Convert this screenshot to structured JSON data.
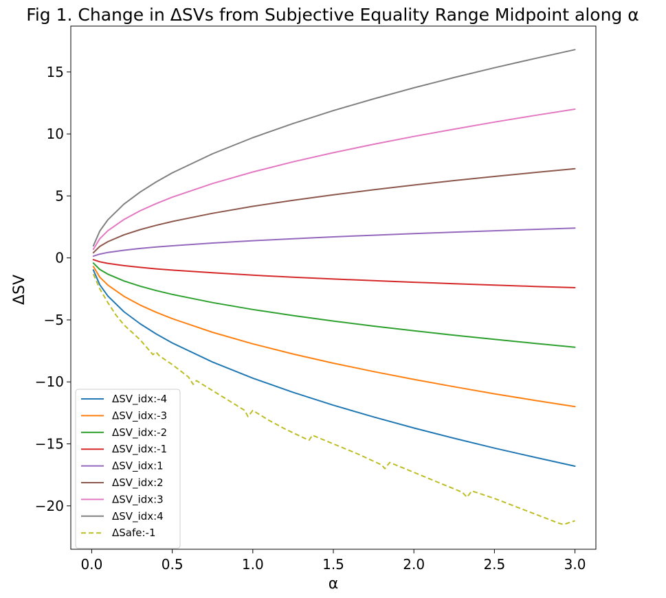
{
  "chart_data": {
    "type": "line",
    "title": "Fig 1. Change in ΔSVs from Subjective Equality Range Midpoint along α",
    "xlabel": "α",
    "ylabel": "ΔSV",
    "xlim": [
      -0.13,
      3.13
    ],
    "ylim": [
      -23.5,
      18.7
    ],
    "xticks": [
      0.0,
      0.5,
      1.0,
      1.5,
      2.0,
      2.5,
      3.0
    ],
    "xtick_labels": [
      "0.0",
      "0.5",
      "1.0",
      "1.5",
      "2.0",
      "2.5",
      "3.0"
    ],
    "yticks": [
      15,
      10,
      5,
      0,
      -5,
      -10,
      -15,
      -20
    ],
    "ytick_labels": [
      "15",
      "10",
      "5",
      "0",
      "−5",
      "−10",
      "−15",
      "−20"
    ],
    "grid": false,
    "legend_position": "lower-left",
    "x": [
      0.01,
      0.05,
      0.1,
      0.2,
      0.3,
      0.4,
      0.5,
      0.75,
      1.0,
      1.25,
      1.5,
      1.75,
      2.0,
      2.25,
      2.5,
      2.75,
      3.0
    ],
    "series": [
      {
        "name": "ΔSV_idx:-4",
        "color": "#1f77b4",
        "dash": false,
        "values": [
          -0.97,
          -2.17,
          -3.07,
          -4.34,
          -5.31,
          -6.13,
          -6.86,
          -8.4,
          -9.7,
          -10.84,
          -11.88,
          -12.83,
          -13.72,
          -14.55,
          -15.34,
          -16.08,
          -16.8
        ]
      },
      {
        "name": "ΔSV_idx:-3",
        "color": "#ff7f0e",
        "dash": false,
        "values": [
          -0.69,
          -1.55,
          -2.19,
          -3.1,
          -3.8,
          -4.38,
          -4.9,
          -6.0,
          -6.93,
          -7.75,
          -8.49,
          -9.17,
          -9.8,
          -10.39,
          -10.96,
          -11.49,
          -12.0
        ]
      },
      {
        "name": "ΔSV_idx:-2",
        "color": "#2ca02c",
        "dash": false,
        "values": [
          -0.42,
          -0.93,
          -1.31,
          -1.86,
          -2.28,
          -2.63,
          -2.94,
          -3.6,
          -4.16,
          -4.65,
          -5.09,
          -5.5,
          -5.88,
          -6.24,
          -6.57,
          -6.89,
          -7.2
        ]
      },
      {
        "name": "ΔSV_idx:-1",
        "color": "#d62728",
        "dash": false,
        "values": [
          -0.14,
          -0.31,
          -0.44,
          -0.62,
          -0.76,
          -0.88,
          -0.98,
          -1.2,
          -1.39,
          -1.55,
          -1.7,
          -1.83,
          -1.96,
          -2.08,
          -2.19,
          -2.3,
          -2.4
        ]
      },
      {
        "name": "ΔSV_idx:1",
        "color": "#9467bd",
        "dash": false,
        "values": [
          0.14,
          0.31,
          0.44,
          0.62,
          0.76,
          0.88,
          0.98,
          1.2,
          1.39,
          1.55,
          1.7,
          1.83,
          1.96,
          2.08,
          2.19,
          2.3,
          2.4
        ]
      },
      {
        "name": "ΔSV_idx:2",
        "color": "#8c564b",
        "dash": false,
        "values": [
          0.42,
          0.93,
          1.31,
          1.86,
          2.28,
          2.63,
          2.94,
          3.6,
          4.16,
          4.65,
          5.09,
          5.5,
          5.88,
          6.24,
          6.57,
          6.89,
          7.2
        ]
      },
      {
        "name": "ΔSV_idx:3",
        "color": "#e377c2",
        "dash": false,
        "values": [
          0.69,
          1.55,
          2.19,
          3.1,
          3.8,
          4.38,
          4.9,
          6.0,
          6.93,
          7.75,
          8.49,
          9.17,
          9.8,
          10.39,
          10.96,
          11.49,
          12.0
        ]
      },
      {
        "name": "ΔSV_idx:4",
        "color": "#7f7f7f",
        "dash": false,
        "values": [
          0.97,
          2.17,
          3.07,
          4.34,
          5.31,
          6.13,
          6.86,
          8.4,
          9.7,
          10.84,
          11.88,
          12.83,
          13.72,
          14.55,
          15.34,
          16.08,
          16.8
        ]
      },
      {
        "name": "ΔSafe:-1",
        "color": "#bcbd22",
        "dash": true,
        "x": [
          0.01,
          0.05,
          0.1,
          0.15,
          0.2,
          0.25,
          0.3,
          0.38,
          0.4,
          0.42,
          0.5,
          0.6,
          0.63,
          0.65,
          0.75,
          0.85,
          0.95,
          0.97,
          1.0,
          1.1,
          1.2,
          1.33,
          1.35,
          1.37,
          1.5,
          1.65,
          1.8,
          1.82,
          1.85,
          2.0,
          2.15,
          2.3,
          2.33,
          2.36,
          2.5,
          2.7,
          2.9,
          2.93,
          3.0
        ],
        "values": [
          -1.3,
          -2.5,
          -3.6,
          -4.6,
          -5.4,
          -6.0,
          -6.6,
          -7.8,
          -7.6,
          -7.9,
          -8.6,
          -9.6,
          -10.2,
          -9.9,
          -10.7,
          -11.5,
          -12.3,
          -12.8,
          -12.3,
          -13.1,
          -13.8,
          -14.6,
          -14.7,
          -14.3,
          -15.0,
          -15.8,
          -16.7,
          -17.0,
          -16.5,
          -17.3,
          -18.1,
          -18.9,
          -19.3,
          -18.8,
          -19.4,
          -20.4,
          -21.4,
          -21.5,
          -21.2
        ]
      }
    ]
  }
}
